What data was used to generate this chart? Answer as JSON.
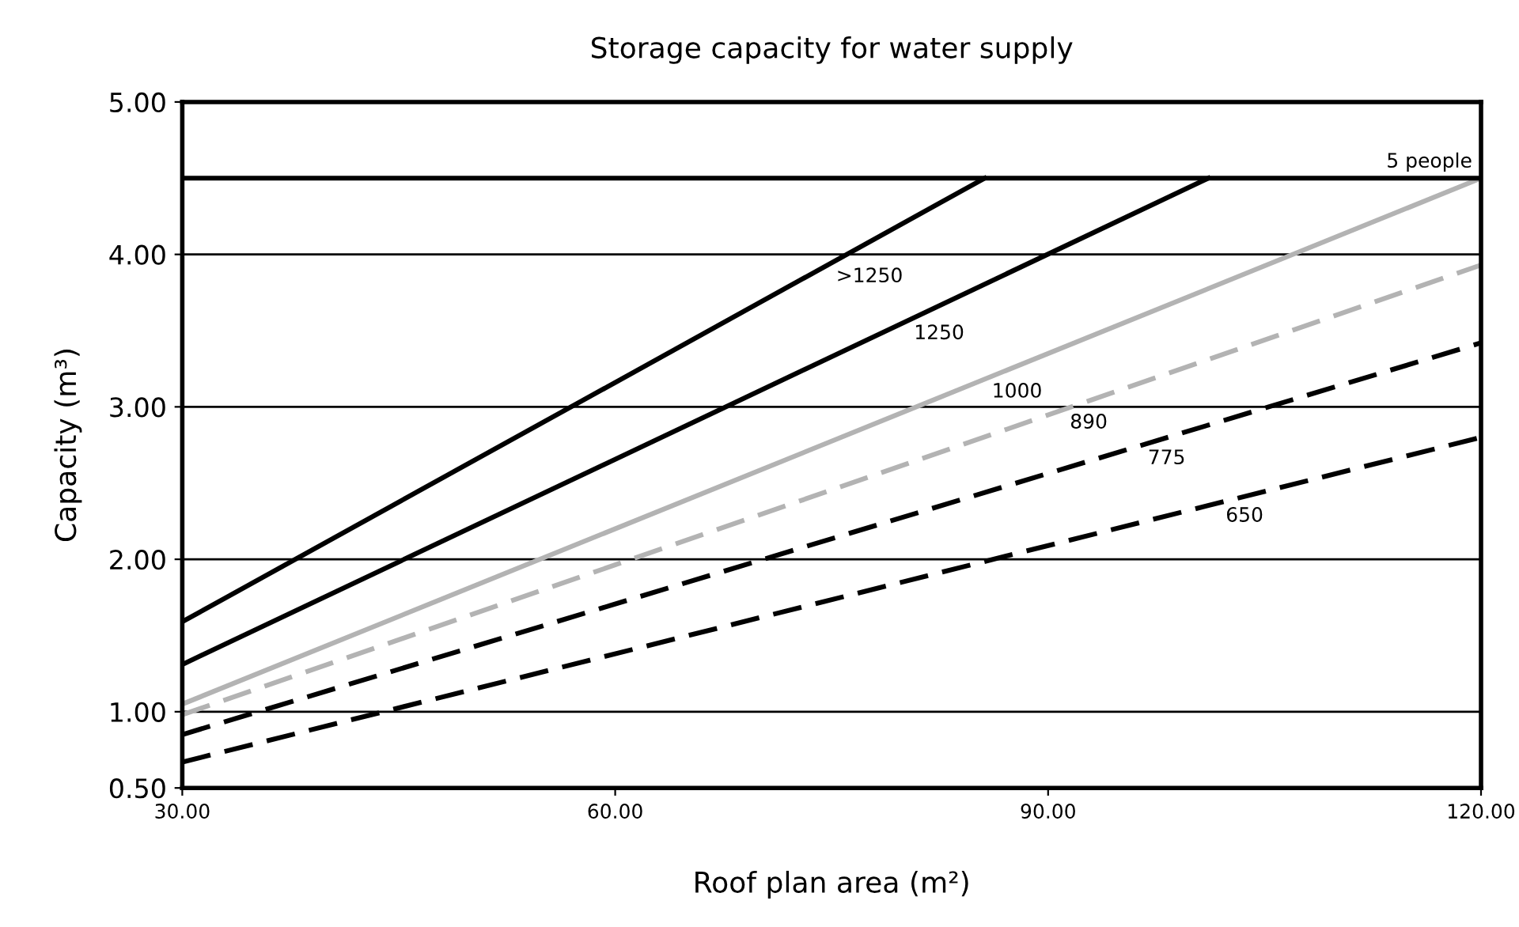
{
  "chart_data": {
    "type": "line",
    "title": "Storage capacity for water supply",
    "xlabel": "Roof plan area (m²)",
    "ylabel": "Capacity (m³)",
    "xlim": [
      30,
      120
    ],
    "ylim": [
      0.5,
      5
    ],
    "xticks": [
      {
        "value": 30,
        "label": "30.00"
      },
      {
        "value": 60,
        "label": "60.00"
      },
      {
        "value": 90,
        "label": "90.00"
      },
      {
        "value": 120,
        "label": "120.00"
      }
    ],
    "yticks": [
      {
        "value": 0.5,
        "label": "0.50"
      },
      {
        "value": 1,
        "label": "1.00"
      },
      {
        "value": 2,
        "label": "2.00"
      },
      {
        "value": 3,
        "label": "3.00"
      },
      {
        "value": 4,
        "label": "4.00"
      },
      {
        "value": 5,
        "label": "5.00"
      }
    ],
    "grid": "y",
    "marker": "none",
    "legend": false,
    "series": [
      {
        "name": ">1250",
        "color": "#000000",
        "line_style": "solid",
        "x": [
          30,
          85.6
        ],
        "values": [
          1.59,
          4.5
        ]
      },
      {
        "name": "1250",
        "color": "#000000",
        "line_style": "solid",
        "x": [
          30,
          101.1
        ],
        "values": [
          1.31,
          4.5
        ]
      },
      {
        "name": "1000",
        "color": "#b3b3b3",
        "line_style": "solid",
        "x": [
          30,
          120
        ],
        "values": [
          1.05,
          4.5
        ]
      },
      {
        "name": "890",
        "color": "#b3b3b3",
        "line_style": "dashed",
        "x": [
          30,
          120
        ],
        "values": [
          0.98,
          3.93
        ]
      },
      {
        "name": "775",
        "color": "#000000",
        "line_style": "dashed",
        "x": [
          30,
          120
        ],
        "values": [
          0.85,
          3.42
        ]
      },
      {
        "name": "650",
        "color": "#000000",
        "line_style": "dashed",
        "x": [
          30,
          120
        ],
        "values": [
          0.67,
          2.8
        ]
      }
    ],
    "ref_lines": [
      {
        "axis": "y",
        "value": 4.5,
        "label": "5 people",
        "color": "#000000"
      }
    ]
  }
}
